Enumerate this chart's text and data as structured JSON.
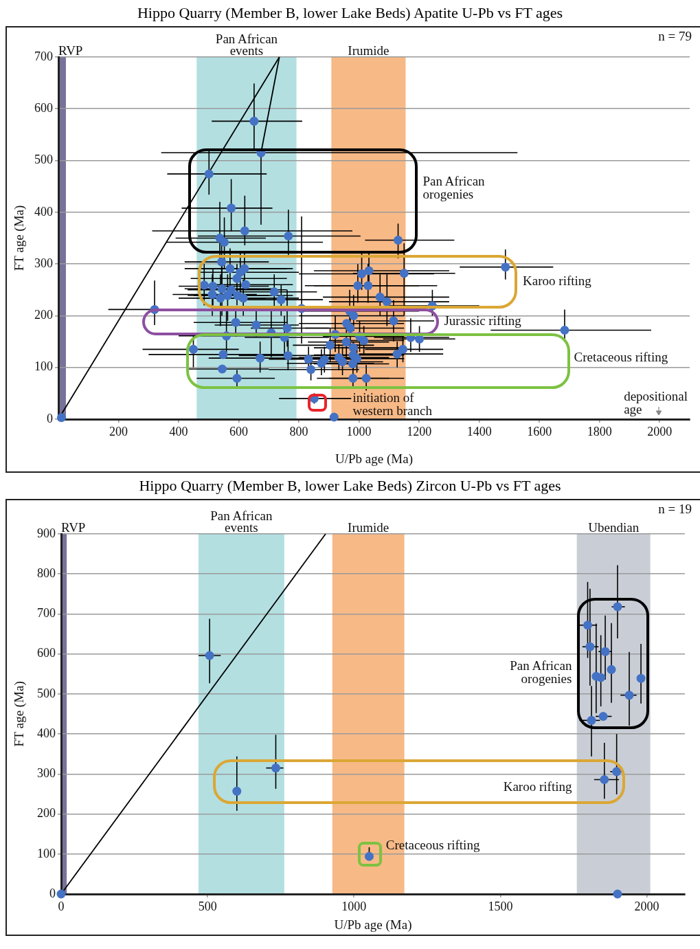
{
  "chart_data": [
    {
      "type": "scatter",
      "title": "Hippo Quarry (Member B, lower Lake Beds) Apatite U-Pb vs FT ages",
      "xlabel": "U/Pb age (Ma)",
      "ylabel": "FT age (Ma)",
      "xlim": [
        0,
        2100
      ],
      "ylim": [
        0,
        700
      ],
      "xticks": [
        200,
        400,
        600,
        800,
        1000,
        1200,
        1400,
        1600,
        1800,
        2000
      ],
      "yticks": [
        0,
        100,
        200,
        300,
        400,
        500,
        600,
        700
      ],
      "grid": "y",
      "marker": "circle",
      "series": [
        {
          "type": "scatter",
          "color": "#4472c4",
          "x": [
            651,
            674,
            501,
            575,
            620,
            765,
            537,
            552,
            1130,
            543,
            571,
            619,
            605,
            594,
            623,
            485,
            514,
            544,
            575,
            512,
            563,
            539,
            596,
            615,
            718,
            741,
            1009,
            1033,
            996,
            1030,
            1070,
            1150,
            1487,
            1244,
            1093,
            320,
            809,
            590,
            658,
            761,
            708,
            959,
            969,
            1115,
            982,
            971,
            1684,
            1172,
            1201,
            559,
            752,
            449,
            548,
            671,
            764,
            545,
            594,
            832,
            840,
            875,
            885,
            904,
            921,
            933,
            958,
            981,
            981,
            979,
            1002,
            980,
            1024,
            1146,
            1127,
            993,
            945,
            1016,
            851,
            917,
            10
          ],
          "values": [
            576,
            515,
            474,
            408,
            364,
            354,
            350,
            342,
            346,
            304,
            291,
            291,
            284,
            272,
            260,
            259,
            257,
            252,
            250,
            241,
            239,
            234,
            239,
            234,
            246,
            231,
            281,
            287,
            258,
            258,
            236,
            282,
            294,
            219,
            227,
            212,
            214,
            187,
            182,
            176,
            167,
            185,
            209,
            190,
            200,
            176,
            172,
            158,
            155,
            161,
            158,
            135,
            125,
            118,
            123,
            97,
            79,
            116,
            96,
            108,
            115,
            143,
            164,
            119,
            149,
            138,
            124,
            107,
            160,
            79,
            79,
            135,
            126,
            117,
            111,
            152,
            40,
            4,
            3
          ],
          "errors": [
            [
              523,
              649
            ],
            [
              376,
              515
            ],
            [
              434,
              523
            ],
            [
              363,
              464
            ],
            [
              336,
              432
            ],
            [
              313,
              405
            ],
            [
              300,
              420
            ],
            [
              290,
              390
            ],
            [
              311,
              378
            ],
            [
              260,
              345
            ],
            [
              250,
              330
            ],
            [
              250,
              320
            ],
            [
              240,
              320
            ],
            [
              220,
              300
            ],
            null,
            [
              220,
              300
            ],
            [
              220,
              290
            ],
            [
              200,
              300
            ],
            null,
            [
              200,
              280
            ],
            [
              190,
              280
            ],
            [
              180,
              280
            ],
            null,
            [
              200,
              270
            ],
            [
              215,
              280
            ],
            [
              200,
              260
            ],
            [
              250,
              320
            ],
            [
              255,
              325
            ],
            [
              225,
              300
            ],
            [
              225,
              300
            ],
            [
              200,
              280
            ],
            [
              200,
              340
            ],
            [
              270,
              328
            ],
            [
              200,
              250
            ],
            [
              180,
              280
            ],
            [
              182,
              268
            ],
            [
              146,
              392
            ],
            [
              160,
              215
            ],
            [
              160,
              210
            ],
            [
              140,
              250
            ],
            [
              120,
              210
            ],
            null,
            [
              170,
              250
            ],
            [
              150,
              230
            ],
            [
              170,
              240
            ],
            [
              140,
              210
            ],
            [
              155,
              212
            ],
            [
              130,
              195
            ],
            [
              130,
              180
            ],
            [
              120,
              210
            ],
            [
              120,
              200
            ],
            [
              100,
              165
            ],
            null,
            [
              90,
              150
            ],
            [
              95,
              155
            ],
            null,
            [
              60,
              95
            ],
            [
              95,
              140
            ],
            [
              75,
              120
            ],
            [
              85,
              135
            ],
            [
              90,
              140
            ],
            [
              110,
              175
            ],
            [
              130,
              200
            ],
            [
              95,
              145
            ],
            [
              120,
              180
            ],
            null,
            [
              95,
              150
            ],
            null,
            [
              130,
              190
            ],
            [
              60,
              100
            ],
            [
              55,
              105
            ],
            [
              110,
              160
            ],
            [
              100,
              150
            ],
            [
              90,
              145
            ],
            [
              85,
              140
            ],
            [
              125,
              180
            ],
            [
              30,
              50
            ],
            null,
            null
          ],
          "xerrors": [
            [
              510,
              811
            ],
            [
              342,
              1527
            ],
            [
              362,
              693
            ],
            [
              410,
              712
            ],
            [
              312,
              978
            ],
            [
              464,
              1005
            ],
            [
              390,
              690
            ],
            [
              360,
              880
            ],
            [
              1020,
              1317
            ],
            [
              420,
              700
            ],
            [
              420,
              760
            ],
            [
              480,
              780
            ],
            [
              470,
              800
            ],
            [
              440,
              760
            ],
            [
              500,
              780
            ],
            null,
            [
              400,
              700
            ],
            [
              420,
              720
            ],
            [
              430,
              760
            ],
            [
              380,
              660
            ],
            [
              430,
              700
            ],
            [
              400,
              690
            ],
            [
              450,
              780
            ],
            [
              470,
              800
            ],
            [
              600,
              860
            ],
            [
              600,
              880
            ],
            [
              800,
              1250
            ],
            [
              850,
              1300
            ],
            [
              820,
              1200
            ],
            [
              850,
              1260
            ],
            [
              880,
              1300
            ],
            [
              980,
              1320
            ],
            [
              1335,
              1646
            ],
            [
              1100,
              1400
            ],
            [
              900,
              1300
            ],
            [
              166,
              600
            ],
            null,
            [
              450,
              760
            ],
            [
              520,
              800
            ],
            [
              640,
              900
            ],
            null,
            [
              800,
              1150
            ],
            [
              800,
              1200
            ],
            [
              990,
              1250
            ],
            [
              800,
              1150
            ],
            [
              820,
              1150
            ],
            [
              1438,
              1972
            ],
            [
              1050,
              1300
            ],
            [
              1080,
              1320
            ],
            [
              400,
              740
            ],
            [
              620,
              900
            ],
            [
              280,
              600
            ],
            [
              300,
              760
            ],
            [
              500,
              900
            ],
            [
              600,
              960
            ],
            [
              430,
              700
            ],
            [
              460,
              720
            ],
            [
              700,
              1000
            ],
            [
              700,
              1000
            ],
            [
              760,
              1050
            ],
            null,
            [
              780,
              1050
            ],
            null,
            [
              800,
              1100
            ],
            [
              830,
              1100
            ],
            [
              850,
              1150
            ],
            [
              850,
              1150
            ],
            [
              850,
              1100
            ],
            [
              880,
              1150
            ],
            [
              860,
              1100
            ],
            [
              900,
              1150
            ],
            [
              1020,
              1280
            ],
            [
              1000,
              1280
            ],
            [
              860,
              1150
            ],
            [
              820,
              1080
            ],
            [
              900,
              1150
            ],
            [
              734,
              974
            ],
            null,
            null
          ]
        },
        {
          "type": "line",
          "color": "#000000",
          "marker": "none",
          "x": [
            0,
            735
          ],
          "values": [
            0,
            700
          ]
        },
        {
          "type": "line",
          "color": "#000000",
          "marker": "none",
          "x": [
            674,
            735
          ],
          "values": [
            515,
            700
          ]
        }
      ],
      "bands": [
        {
          "axis": "x",
          "from": 0,
          "to": 25,
          "label": "RVP",
          "color": "#77729a"
        },
        {
          "axis": "x",
          "from": 460,
          "to": 792,
          "label": "Pan African\nevents",
          "color": "#b3dfe1"
        },
        {
          "axis": "x",
          "from": 908,
          "to": 1155,
          "label": "Irumide",
          "color": "#f7b986"
        }
      ],
      "annotations": [
        "n = 79",
        "Pan African\norogenies",
        "Karoo rifting",
        "Jurassic rifting",
        "Cretaceous rifting",
        "initiation of\nwestern branch",
        "depositional\nage"
      ]
    },
    {
      "type": "scatter",
      "title": "Hippo Quarry (Member B, lower Lake Beds) Zircon U-Pb vs FT ages",
      "xlabel": "U/Pb age (Ma)",
      "ylabel": "FT age (Ma)",
      "xlim": [
        0,
        2130
      ],
      "ylim": [
        0,
        900
      ],
      "xticks": [
        0,
        500,
        1000,
        1500,
        2000
      ],
      "yticks": [
        0,
        100,
        200,
        300,
        400,
        500,
        600,
        700,
        800,
        900
      ],
      "grid": "y",
      "marker": "circle",
      "series": [
        {
          "type": "scatter",
          "color": "#4472c4",
          "x": [
            507,
            600,
            733,
            1052,
            1900,
            1798,
            1806,
            1858,
            1879,
            1827,
            1843,
            1980,
            1940,
            1811,
            1851,
            1855,
            1897,
            1900,
            0
          ],
          "values": [
            596,
            257,
            315,
            94,
            718,
            672,
            618,
            606,
            561,
            544,
            541,
            539,
            497,
            434,
            444,
            286,
            306,
            0,
            0
          ],
          "errors": [
            [
              527,
              688
            ],
            [
              208,
              344
            ],
            [
              263,
              398
            ],
            [
              85,
              117
            ],
            [
              639,
              822
            ],
            [
              590,
              780
            ],
            [
              521,
              763
            ],
            [
              536,
              696
            ],
            [
              478,
              677
            ],
            [
              452,
              676
            ],
            [
              469,
              647
            ],
            [
              476,
              625
            ],
            [
              421,
              605
            ],
            [
              344,
              520
            ],
            null,
            [
              238,
              378
            ],
            [
              249,
              400
            ],
            null,
            null
          ],
          "xerrors": [
            [
              469,
              545
            ],
            null,
            [
              700,
              759
            ],
            null,
            [
              1880,
              1925
            ],
            [
              1770,
              1830
            ],
            [
              1780,
              1835
            ],
            [
              1835,
              1880
            ],
            null,
            null,
            null,
            null,
            [
              1910,
              1965
            ],
            [
              1770,
              1840
            ],
            [
              1825,
              1880
            ],
            [
              1820,
              1905
            ],
            [
              1875,
              1920
            ],
            null,
            null
          ]
        },
        {
          "type": "line",
          "color": "#000000",
          "marker": "none",
          "x": [
            0,
            903
          ],
          "values": [
            0,
            900
          ]
        }
      ],
      "bands": [
        {
          "axis": "x",
          "from": 0,
          "to": 19,
          "label": "RVP",
          "color": "#77729a"
        },
        {
          "axis": "x",
          "from": 469,
          "to": 762,
          "label": "Pan African\nevents",
          "color": "#b3dfe1"
        },
        {
          "axis": "x",
          "from": 926,
          "to": 1172,
          "label": "Irumide",
          "color": "#f7b986"
        },
        {
          "axis": "x",
          "from": 1761,
          "to": 2012,
          "label": "Ubendian",
          "color": "#c9ced6"
        }
      ],
      "annotations": [
        "n = 19",
        "Pan African\norogenies",
        "Karoo rifting",
        "Cretaceous rifting"
      ]
    }
  ]
}
